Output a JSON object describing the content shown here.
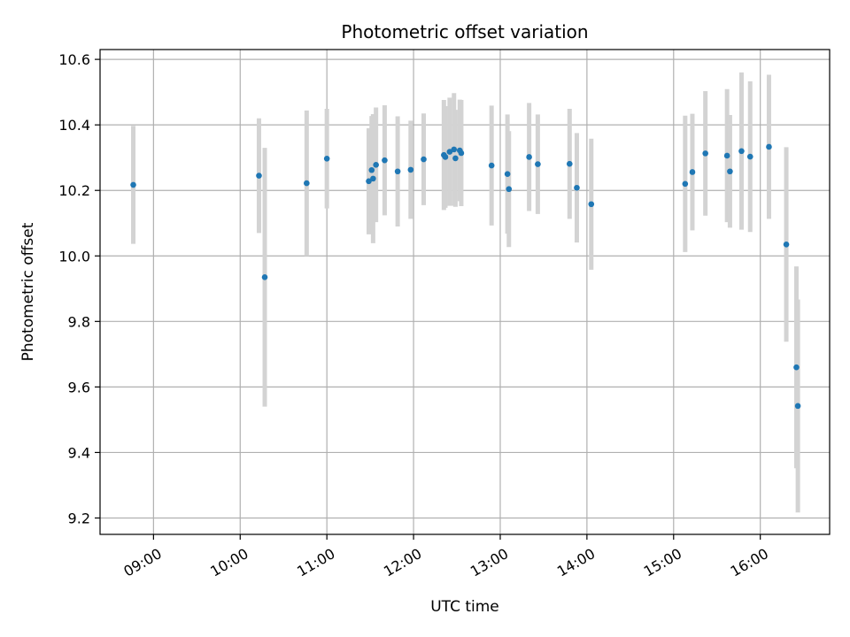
{
  "chart_data": {
    "type": "scatter",
    "title": "Photometric offset variation",
    "xlabel": "UTC time",
    "ylabel": "Photometric offset",
    "x_unit": "UTC time (HH:MM)",
    "xlim": [
      "08:23",
      "16:48"
    ],
    "ylim": [
      9.15,
      10.63
    ],
    "grid": true,
    "x_ticks": [
      "09:00",
      "10:00",
      "11:00",
      "12:00",
      "13:00",
      "14:00",
      "15:00",
      "16:00"
    ],
    "y_ticks": [
      "9.2",
      "9.4",
      "9.6",
      "9.8",
      "10.0",
      "10.2",
      "10.4",
      "10.6"
    ],
    "series": [
      {
        "marker_color": "#1f77b4",
        "errorbar_color": "#d3d3d3",
        "points": [
          {
            "x": "08:46",
            "y": 10.217,
            "err": 0.18
          },
          {
            "x": "10:13",
            "y": 10.245,
            "err": 0.175
          },
          {
            "x": "10:17",
            "y": 9.935,
            "err": 0.395
          },
          {
            "x": "10:46",
            "y": 10.222,
            "err": 0.222
          },
          {
            "x": "11:00",
            "y": 10.297,
            "err": 0.152
          },
          {
            "x": "11:29",
            "y": 10.228,
            "err": 0.162
          },
          {
            "x": "11:31",
            "y": 10.262,
            "err": 0.165
          },
          {
            "x": "11:32",
            "y": 10.236,
            "err": 0.197
          },
          {
            "x": "11:34",
            "y": 10.278,
            "err": 0.175
          },
          {
            "x": "11:40",
            "y": 10.292,
            "err": 0.168
          },
          {
            "x": "11:49",
            "y": 10.258,
            "err": 0.168
          },
          {
            "x": "11:58",
            "y": 10.263,
            "err": 0.15
          },
          {
            "x": "12:07",
            "y": 10.295,
            "err": 0.14
          },
          {
            "x": "12:21",
            "y": 10.308,
            "err": 0.168
          },
          {
            "x": "12:22",
            "y": 10.302,
            "err": 0.155
          },
          {
            "x": "12:25",
            "y": 10.318,
            "err": 0.165
          },
          {
            "x": "12:28",
            "y": 10.325,
            "err": 0.172
          },
          {
            "x": "12:29",
            "y": 10.298,
            "err": 0.148
          },
          {
            "x": "12:32",
            "y": 10.322,
            "err": 0.155
          },
          {
            "x": "12:33",
            "y": 10.314,
            "err": 0.162
          },
          {
            "x": "12:54",
            "y": 10.276,
            "err": 0.183
          },
          {
            "x": "13:05",
            "y": 10.25,
            "err": 0.182
          },
          {
            "x": "13:06",
            "y": 10.204,
            "err": 0.177
          },
          {
            "x": "13:20",
            "y": 10.302,
            "err": 0.165
          },
          {
            "x": "13:26",
            "y": 10.28,
            "err": 0.152
          },
          {
            "x": "13:48",
            "y": 10.281,
            "err": 0.168
          },
          {
            "x": "13:53",
            "y": 10.208,
            "err": 0.167
          },
          {
            "x": "14:03",
            "y": 10.158,
            "err": 0.2
          },
          {
            "x": "15:08",
            "y": 10.22,
            "err": 0.208
          },
          {
            "x": "15:13",
            "y": 10.256,
            "err": 0.178
          },
          {
            "x": "15:22",
            "y": 10.313,
            "err": 0.19
          },
          {
            "x": "15:37",
            "y": 10.306,
            "err": 0.203
          },
          {
            "x": "15:39",
            "y": 10.258,
            "err": 0.172
          },
          {
            "x": "15:47",
            "y": 10.32,
            "err": 0.24
          },
          {
            "x": "15:53",
            "y": 10.303,
            "err": 0.23
          },
          {
            "x": "16:06",
            "y": 10.333,
            "err": 0.22
          },
          {
            "x": "16:18",
            "y": 10.035,
            "err": 0.297
          },
          {
            "x": "16:25",
            "y": 9.66,
            "err": 0.308
          },
          {
            "x": "16:26",
            "y": 9.542,
            "err": 0.325
          }
        ]
      }
    ]
  }
}
